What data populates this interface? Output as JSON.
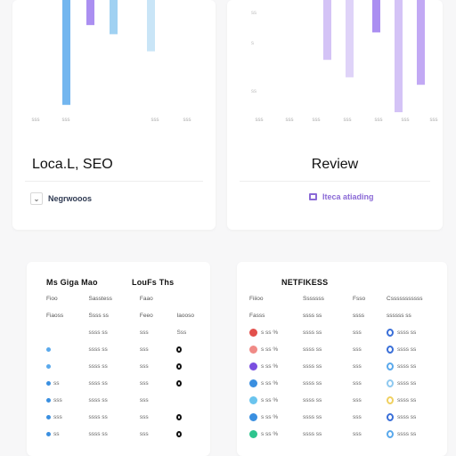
{
  "cards": {
    "local": {
      "title": "Loca.L, SEO",
      "action_label": "Negrwooos",
      "chart": {
        "x_tick_labels": [
          "sss",
          "sss",
          "",
          "sss",
          "sss"
        ],
        "bars": [
          {
            "color": "#5aa9ec",
            "value": 0.92
          },
          {
            "color": "#9c7bef",
            "value": 0.22
          },
          {
            "color": "#8fc9f0",
            "value": 0.3
          },
          {
            "color": "#bfe0f6",
            "value": 0.45
          }
        ]
      }
    },
    "review": {
      "title": "Review",
      "action_label": "Iteca atiading",
      "chart": {
        "y_tick_labels": [
          "ss",
          "s",
          "ss"
        ],
        "x_tick_labels": [
          "sss",
          "sss",
          "sss",
          "",
          "sss",
          "sss",
          "sss",
          "sss"
        ],
        "bars": [
          {
            "color": "#cdb9f5",
            "value": 0.48
          },
          {
            "color": "#d9cbf7",
            "value": 0.62
          },
          {
            "color": "#9c7bef",
            "value": 0.26
          },
          {
            "color": "#cdb9f5",
            "value": 0.9
          },
          {
            "color": "#b79af2",
            "value": 0.68
          }
        ]
      }
    }
  },
  "table_a": {
    "titles": [
      "Ms Giga Mao",
      "LouFs Ths"
    ],
    "headers": [
      "Fioo",
      "Sasstess",
      "Faao",
      ""
    ],
    "subheaders": [
      "Fiaoss",
      "Ssss ss",
      "Feeo",
      "Iaooso"
    ],
    "rows": [
      {
        "c1": "",
        "c2": "ssss ss",
        "c3": "sss",
        "c4": "Sss",
        "dot": "",
        "ring": false
      },
      {
        "c1": "",
        "c2": "ssss ss",
        "c3": "sss",
        "c4": "",
        "dot": "#5aa9ec",
        "ring": true
      },
      {
        "c1": "",
        "c2": "ssss ss",
        "c3": "sss",
        "c4": "",
        "dot": "#5aa9ec",
        "ring": true
      },
      {
        "c1": "ss",
        "c2": "ssss ss",
        "c3": "sss",
        "c4": "",
        "dot": "#3a8fe0",
        "ring": true
      },
      {
        "c1": "sss",
        "c2": "ssss ss",
        "c3": "sss",
        "c4": "",
        "dot": "#3a8fe0",
        "ring": false
      },
      {
        "c1": "sss",
        "c2": "ssss ss",
        "c3": "sss",
        "c4": "",
        "dot": "#3a8fe0",
        "ring": true
      },
      {
        "c1": "ss",
        "c2": "ssss ss",
        "c3": "sss",
        "c4": "",
        "dot": "#3a8fe0",
        "ring": true
      }
    ]
  },
  "table_b": {
    "title": "NETFIKESS",
    "headers": [
      "Fiiioo",
      "Sssssss",
      "Fsso",
      "Csssssssssss"
    ],
    "subheaders": [
      "Fasss",
      "ssss ss",
      "ssss",
      "ssssss ss"
    ],
    "rows": [
      {
        "dot": "#e2504c",
        "c1": "s ss %",
        "c2": "ssss ss",
        "c3": "sss",
        "ring": "#3a6fd8",
        "c4": "ssss ss"
      },
      {
        "dot": "#f08a86",
        "c1": "s ss %",
        "c2": "ssss ss",
        "c3": "sss",
        "ring": "#3a6fd8",
        "c4": "ssss ss"
      },
      {
        "dot": "#7a4fe0",
        "c1": "s ss %",
        "c2": "ssss ss",
        "c3": "sss",
        "ring": "#5aa9ec",
        "c4": "ssss ss"
      },
      {
        "dot": "#3a8fe0",
        "c1": "s ss %",
        "c2": "ssss ss",
        "c3": "sss",
        "ring": "#8fc9f0",
        "c4": "ssss ss"
      },
      {
        "dot": "#6ac4ee",
        "c1": "s ss %",
        "c2": "ssss ss",
        "c3": "sss",
        "ring": "#f0d060",
        "c4": "ssss ss"
      },
      {
        "dot": "#3a8fe0",
        "c1": "s ss %",
        "c2": "ssss ss",
        "c3": "sss",
        "ring": "#3a6fd8",
        "c4": "ssss ss"
      },
      {
        "dot": "#2ec48e",
        "c1": "s ss %",
        "c2": "ssss ss",
        "c3": "sss",
        "ring": "#5aa9ec",
        "c4": "ssss ss"
      }
    ]
  }
}
